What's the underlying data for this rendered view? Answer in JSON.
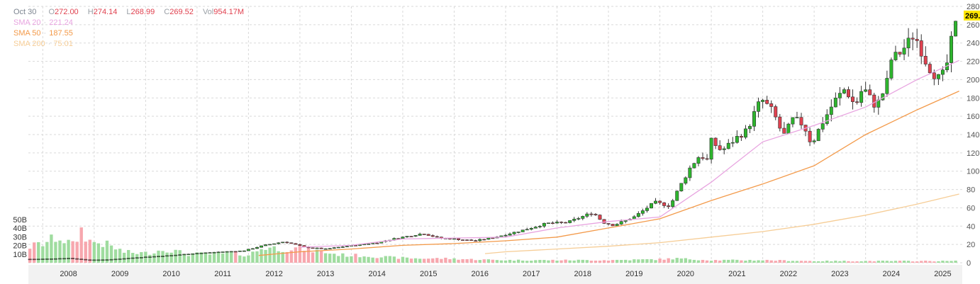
{
  "legend": {
    "date": "Oct 30",
    "open_label": "O",
    "open": "272.00",
    "high_label": "H",
    "high": "274.14",
    "low_label": "L",
    "low": "268.99",
    "close_label": "C",
    "close": "269.52",
    "vol_label": "Vol",
    "vol": "954.17M",
    "sma20_label": "SMA 20",
    "sma20_value": "221.24",
    "sma50_label": "SMA 50",
    "sma50_value": "187.55",
    "sma200_label": "SMA 200",
    "sma200_value": "75.01"
  },
  "colors": {
    "up": "#2db52d",
    "down": "#e0414f",
    "up_vol": "#9fdc9f",
    "down_vol": "#f7a7ae",
    "sma20": "#e8a4e0",
    "sma50": "#f39a4a",
    "sma200": "#f6cd96",
    "price_tag": "#ffe600",
    "grid": "#d9d9d9"
  },
  "chart_data": {
    "type": "candlestick",
    "interval": "monthly",
    "y_axis": {
      "side": "right",
      "range": [
        0,
        280
      ],
      "ticks": [
        0,
        20,
        40,
        60,
        80,
        100,
        120,
        140,
        160,
        180,
        200,
        220,
        240,
        260,
        280
      ]
    },
    "volume_axis": {
      "labels": [
        "10B",
        "20B",
        "30B",
        "40B",
        "50B"
      ],
      "values": [
        10,
        20,
        30,
        40,
        50
      ],
      "unit": "billions"
    },
    "x_axis": {
      "labels": [
        "2008",
        "2009",
        "2010",
        "2011",
        "2012",
        "2013",
        "2014",
        "2015",
        "2016",
        "2017",
        "2018",
        "2019",
        "2020",
        "2021",
        "2022",
        "2023",
        "2024",
        "2025"
      ]
    },
    "last_price_label": "269.",
    "series": [
      {
        "name": "SMA 20",
        "points": [
          [
            2013.0,
            17
          ],
          [
            2014.0,
            19
          ],
          [
            2015.0,
            26
          ],
          [
            2016.0,
            27
          ],
          [
            2017.0,
            28
          ],
          [
            2018.0,
            38
          ],
          [
            2019.0,
            45
          ],
          [
            2020.0,
            50
          ],
          [
            2021.0,
            88
          ],
          [
            2022.0,
            132
          ],
          [
            2023.0,
            150
          ],
          [
            2024.0,
            170
          ],
          [
            2025.0,
            200
          ],
          [
            2025.82,
            221
          ]
        ]
      },
      {
        "name": "SMA 50",
        "points": [
          [
            2012.2,
            8
          ],
          [
            2013.0,
            12
          ],
          [
            2014.0,
            15
          ],
          [
            2015.0,
            19
          ],
          [
            2016.0,
            21
          ],
          [
            2017.0,
            24
          ],
          [
            2018.0,
            28
          ],
          [
            2019.0,
            38
          ],
          [
            2020.0,
            48
          ],
          [
            2021.0,
            68
          ],
          [
            2022.0,
            86
          ],
          [
            2023.0,
            106
          ],
          [
            2024.0,
            140
          ],
          [
            2025.0,
            167
          ],
          [
            2025.82,
            187.5
          ]
        ]
      },
      {
        "name": "SMA 200",
        "points": [
          [
            2016.6,
            10
          ],
          [
            2017.0,
            12
          ],
          [
            2018.0,
            15
          ],
          [
            2019.0,
            18
          ],
          [
            2020.0,
            22
          ],
          [
            2021.0,
            28
          ],
          [
            2022.0,
            34
          ],
          [
            2023.0,
            42
          ],
          [
            2024.0,
            52
          ],
          [
            2025.0,
            64
          ],
          [
            2025.82,
            75
          ]
        ]
      }
    ],
    "price_anchors": [
      [
        2007.9,
        4
      ],
      [
        2008.5,
        5
      ],
      [
        2008.9,
        3
      ],
      [
        2009.3,
        3.5
      ],
      [
        2009.9,
        6
      ],
      [
        2010.5,
        8
      ],
      [
        2010.9,
        10
      ],
      [
        2011.5,
        12
      ],
      [
        2011.9,
        13
      ],
      [
        2012.3,
        19
      ],
      [
        2012.7,
        23
      ],
      [
        2013.1,
        17
      ],
      [
        2013.5,
        15
      ],
      [
        2013.9,
        18
      ],
      [
        2014.5,
        22
      ],
      [
        2014.9,
        27
      ],
      [
        2015.4,
        32
      ],
      [
        2015.7,
        27
      ],
      [
        2016.0,
        26
      ],
      [
        2016.4,
        24
      ],
      [
        2016.8,
        28
      ],
      [
        2017.3,
        35
      ],
      [
        2017.8,
        43
      ],
      [
        2018.2,
        44
      ],
      [
        2018.7,
        55
      ],
      [
        2018.9,
        44
      ],
      [
        2019.1,
        41
      ],
      [
        2019.5,
        50
      ],
      [
        2019.9,
        66
      ],
      [
        2020.2,
        62
      ],
      [
        2020.3,
        74
      ],
      [
        2020.6,
        105
      ],
      [
        2020.8,
        119
      ],
      [
        2020.9,
        108
      ],
      [
        2021.0,
        133
      ],
      [
        2021.2,
        122
      ],
      [
        2021.5,
        137
      ],
      [
        2021.7,
        145
      ],
      [
        2021.9,
        172
      ],
      [
        2022.0,
        177
      ],
      [
        2022.2,
        165
      ],
      [
        2022.4,
        138
      ],
      [
        2022.6,
        158
      ],
      [
        2022.8,
        150
      ],
      [
        2022.95,
        129
      ],
      [
        2023.1,
        147
      ],
      [
        2023.4,
        177
      ],
      [
        2023.6,
        190
      ],
      [
        2023.8,
        171
      ],
      [
        2023.95,
        192
      ],
      [
        2024.2,
        170
      ],
      [
        2024.4,
        193
      ],
      [
        2024.5,
        222
      ],
      [
        2024.7,
        231
      ],
      [
        2024.95,
        250
      ],
      [
        2025.05,
        236
      ],
      [
        2025.15,
        222
      ],
      [
        2025.25,
        212
      ],
      [
        2025.4,
        201
      ],
      [
        2025.55,
        208
      ],
      [
        2025.65,
        238
      ],
      [
        2025.8,
        270
      ]
    ],
    "volume_anchors": [
      [
        2007.7,
        18
      ],
      [
        2008.0,
        22
      ],
      [
        2008.3,
        30
      ],
      [
        2008.6,
        20
      ],
      [
        2008.75,
        38
      ],
      [
        2008.9,
        25
      ],
      [
        2009.2,
        22
      ],
      [
        2009.6,
        12
      ],
      [
        2010.0,
        11
      ],
      [
        2010.4,
        16
      ],
      [
        2010.8,
        10
      ],
      [
        2011.3,
        10
      ],
      [
        2011.7,
        11
      ],
      [
        2012.0,
        9
      ],
      [
        2012.3,
        18
      ],
      [
        2012.7,
        16
      ],
      [
        2013.0,
        17
      ],
      [
        2013.4,
        13
      ],
      [
        2013.8,
        9
      ],
      [
        2014.3,
        8
      ],
      [
        2014.8,
        6
      ],
      [
        2015.3,
        5
      ],
      [
        2015.8,
        5
      ],
      [
        2016.3,
        4
      ],
      [
        2017.0,
        3
      ],
      [
        2018.0,
        3
      ],
      [
        2019.0,
        3
      ],
      [
        2020.0,
        4
      ],
      [
        2020.3,
        5
      ],
      [
        2021.0,
        3
      ],
      [
        2022.0,
        3
      ],
      [
        2023.0,
        2
      ],
      [
        2024.0,
        2
      ],
      [
        2025.0,
        2
      ],
      [
        2025.82,
        2
      ]
    ]
  }
}
